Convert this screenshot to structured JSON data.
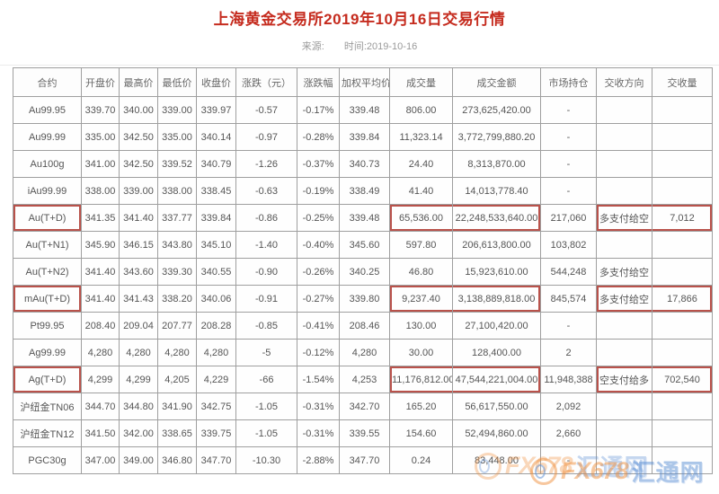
{
  "page": {
    "title": "上海黄金交易所2019年10月16日交易行情",
    "source_label": "来源:",
    "time_label": "时间:2019-10-16"
  },
  "colors": {
    "title_red": "#c52b1e",
    "highlight_red": "#b9524b",
    "border_gray": "#9f9f9f",
    "text_gray": "#555555",
    "meta_gray": "#9a9a9a"
  },
  "watermark": {
    "brand": "FX678",
    "site": "汇通网",
    "orange": "#f0913f",
    "blue": "#5b8fd4"
  },
  "table": {
    "columns": [
      "合约",
      "开盘价",
      "最高价",
      "最低价",
      "收盘价",
      "涨跌（元）",
      "涨跌幅",
      "加权平均价",
      "成交量",
      "成交金额",
      "市场持仓",
      "交收方向",
      "交收量"
    ],
    "rows": [
      {
        "highlight": false,
        "cells": [
          "Au99.95",
          "339.70",
          "340.00",
          "339.00",
          "339.97",
          "-0.57",
          "-0.17%",
          "339.48",
          "806.00",
          "273,625,420.00",
          "-",
          "",
          ""
        ]
      },
      {
        "highlight": false,
        "cells": [
          "Au99.99",
          "335.00",
          "342.50",
          "335.00",
          "340.14",
          "-0.97",
          "-0.28%",
          "339.84",
          "11,323.14",
          "3,772,799,880.20",
          "-",
          "",
          ""
        ]
      },
      {
        "highlight": false,
        "cells": [
          "Au100g",
          "341.00",
          "342.50",
          "339.52",
          "340.79",
          "-1.26",
          "-0.37%",
          "340.73",
          "24.40",
          "8,313,870.00",
          "-",
          "",
          ""
        ]
      },
      {
        "highlight": false,
        "cells": [
          "iAu99.99",
          "338.00",
          "339.00",
          "338.00",
          "338.45",
          "-0.63",
          "-0.19%",
          "338.49",
          "41.40",
          "14,013,778.40",
          "-",
          "",
          ""
        ]
      },
      {
        "highlight": true,
        "cells": [
          "Au(T+D)",
          "341.35",
          "341.40",
          "337.77",
          "339.84",
          "-0.86",
          "-0.25%",
          "339.48",
          "65,536.00",
          "22,248,533,640.00",
          "217,060",
          "多支付给空",
          "7,012"
        ]
      },
      {
        "highlight": false,
        "cells": [
          "Au(T+N1)",
          "345.90",
          "346.15",
          "343.80",
          "345.10",
          "-1.40",
          "-0.40%",
          "345.60",
          "597.80",
          "206,613,800.00",
          "103,802",
          "",
          ""
        ]
      },
      {
        "highlight": false,
        "cells": [
          "Au(T+N2)",
          "341.40",
          "343.60",
          "339.30",
          "340.55",
          "-0.90",
          "-0.26%",
          "340.25",
          "46.80",
          "15,923,610.00",
          "544,248",
          "多支付给空",
          ""
        ]
      },
      {
        "highlight": true,
        "cells": [
          "mAu(T+D)",
          "341.40",
          "341.43",
          "338.20",
          "340.06",
          "-0.91",
          "-0.27%",
          "339.80",
          "9,237.40",
          "3,138,889,818.00",
          "845,574",
          "多支付给空",
          "17,866"
        ]
      },
      {
        "highlight": false,
        "cells": [
          "Pt99.95",
          "208.40",
          "209.04",
          "207.77",
          "208.28",
          "-0.85",
          "-0.41%",
          "208.46",
          "130.00",
          "27,100,420.00",
          "-",
          "",
          ""
        ]
      },
      {
        "highlight": false,
        "cells": [
          "Ag99.99",
          "4,280",
          "4,280",
          "4,280",
          "4,280",
          "-5",
          "-0.12%",
          "4,280",
          "30.00",
          "128,400.00",
          "2",
          "",
          ""
        ]
      },
      {
        "highlight": true,
        "cells": [
          "Ag(T+D)",
          "4,299",
          "4,299",
          "4,205",
          "4,229",
          "-66",
          "-1.54%",
          "4,253",
          "11,176,812.00",
          "47,544,221,004.00",
          "11,948,388",
          "空支付给多",
          "702,540"
        ]
      },
      {
        "highlight": false,
        "cells": [
          "沪纽金TN06",
          "344.70",
          "344.80",
          "341.90",
          "342.75",
          "-1.05",
          "-0.31%",
          "342.70",
          "165.20",
          "56,617,550.00",
          "2,092",
          "",
          ""
        ]
      },
      {
        "highlight": false,
        "cells": [
          "沪纽金TN12",
          "341.50",
          "342.00",
          "338.65",
          "339.75",
          "-1.05",
          "-0.31%",
          "339.55",
          "154.60",
          "52,494,860.00",
          "2,660",
          "",
          ""
        ]
      },
      {
        "highlight": false,
        "cells": [
          "PGC30g",
          "347.00",
          "349.00",
          "346.80",
          "347.70",
          "-10.30",
          "-2.88%",
          "347.70",
          "0.24",
          "83,448.00",
          "-",
          "",
          ""
        ]
      }
    ]
  }
}
